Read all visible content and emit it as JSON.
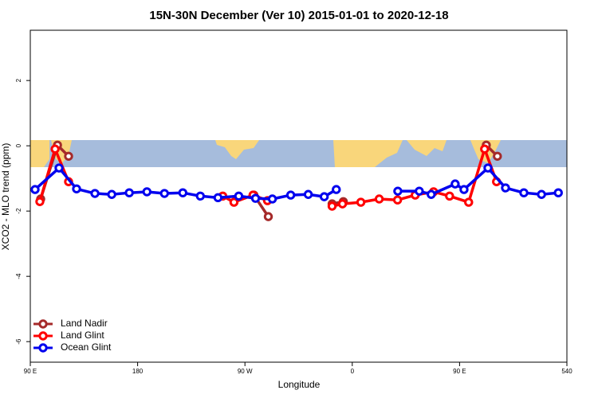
{
  "chart_data": {
    "type": "line",
    "title": "15N-30N December (Ver 10)   2015-01-01 to 2020-12-18",
    "x_label": "Longitude",
    "y_label": "XCO2 - MLO trend (ppm)",
    "xlim": [
      90,
      540
    ],
    "xticks": [
      {
        "value": 90,
        "label": "90 E"
      },
      180,
      {
        "value": 270,
        "label": "90 W"
      },
      {
        "value": 360,
        "label": "0"
      },
      {
        "value": 450,
        "label": "90 E"
      },
      540
    ],
    "ylim": [
      -6.63,
      3.54
    ],
    "yticks": [
      -6,
      -4,
      -2,
      0,
      2
    ],
    "legend": "bottom-left",
    "series": [
      {
        "name": "Land Nadir",
        "color": "#a52a2a",
        "x": [
          98.7,
          112.8,
          122.1,
          null,
          277.5,
          289.6,
          null,
          343.1,
          352.5,
          null,
          472.4,
          481.7
        ],
        "values": [
          -1.63,
          0.02,
          -0.32,
          null,
          -1.51,
          -2.17,
          null,
          -1.78,
          -1.71,
          null,
          0.02,
          -0.32
        ]
      },
      {
        "name": "Land Glint",
        "color": "#ff0000",
        "x": [
          98,
          110.8,
          122.1,
          null,
          251.4,
          260.8,
          276.8,
          288.9,
          null,
          343.1,
          351.8,
          367.2,
          382.6,
          398,
          412.8,
          428.2,
          441.6,
          457.6,
          471,
          481
        ],
        "values": [
          -1.71,
          -0.1,
          -1.1,
          null,
          -1.54,
          -1.73,
          -1.51,
          -1.68,
          null,
          -1.85,
          -1.78,
          -1.73,
          -1.63,
          -1.66,
          -1.51,
          -1.41,
          -1.54,
          -1.73,
          -0.1,
          -1.1
        ]
      },
      {
        "name": "Ocean Glint",
        "color": "#0000ee",
        "x": [
          94,
          114.1,
          128.8,
          144.2,
          158.3,
          173,
          187.8,
          202.5,
          217.9,
          232.6,
          247.4,
          264.8,
          278.9,
          293,
          308.4,
          323.1,
          336.5,
          346.6,
          null,
          398.2,
          416.2,
          426.2,
          446.3,
          453.7,
          473.8,
          488.5,
          503.9,
          518.7,
          532.8
        ],
        "values": [
          -1.34,
          -0.68,
          -1.32,
          -1.46,
          -1.49,
          -1.44,
          -1.41,
          -1.46,
          -1.44,
          -1.54,
          -1.59,
          -1.54,
          -1.61,
          -1.63,
          -1.51,
          -1.49,
          -1.56,
          -1.34,
          null,
          -1.39,
          -1.39,
          -1.49,
          -1.17,
          -1.34,
          -0.68,
          -1.29,
          -1.44,
          -1.49,
          -1.44
        ]
      }
    ]
  }
}
